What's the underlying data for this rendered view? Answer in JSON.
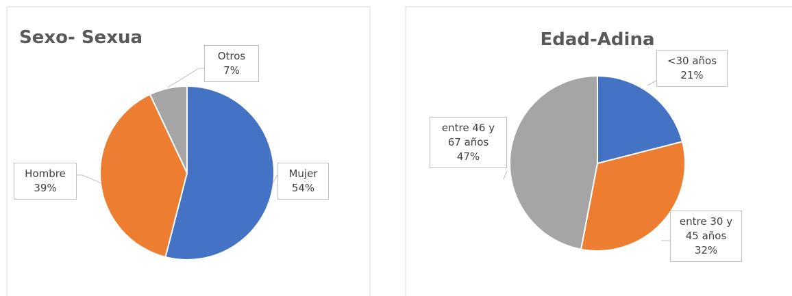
{
  "chart_data": [
    {
      "type": "pie",
      "title": "Sexo- Sexua",
      "categories": [
        "Mujer",
        "Hombre",
        "Otros"
      ],
      "values": [
        54,
        39,
        7
      ],
      "value_labels": [
        "54%",
        "39%",
        "7%"
      ],
      "colors": [
        "#4472c4",
        "#ed7d31",
        "#a5a5a5"
      ]
    },
    {
      "type": "pie",
      "title": "Edad-Adina",
      "categories": [
        "<30 años",
        "entre 30 y 45 años",
        "entre 46 y 67 años"
      ],
      "values": [
        21,
        32,
        47
      ],
      "value_labels": [
        "21%",
        "32%",
        "47%"
      ],
      "colors": [
        "#4472c4",
        "#ed7d31",
        "#a5a5a5"
      ]
    }
  ]
}
